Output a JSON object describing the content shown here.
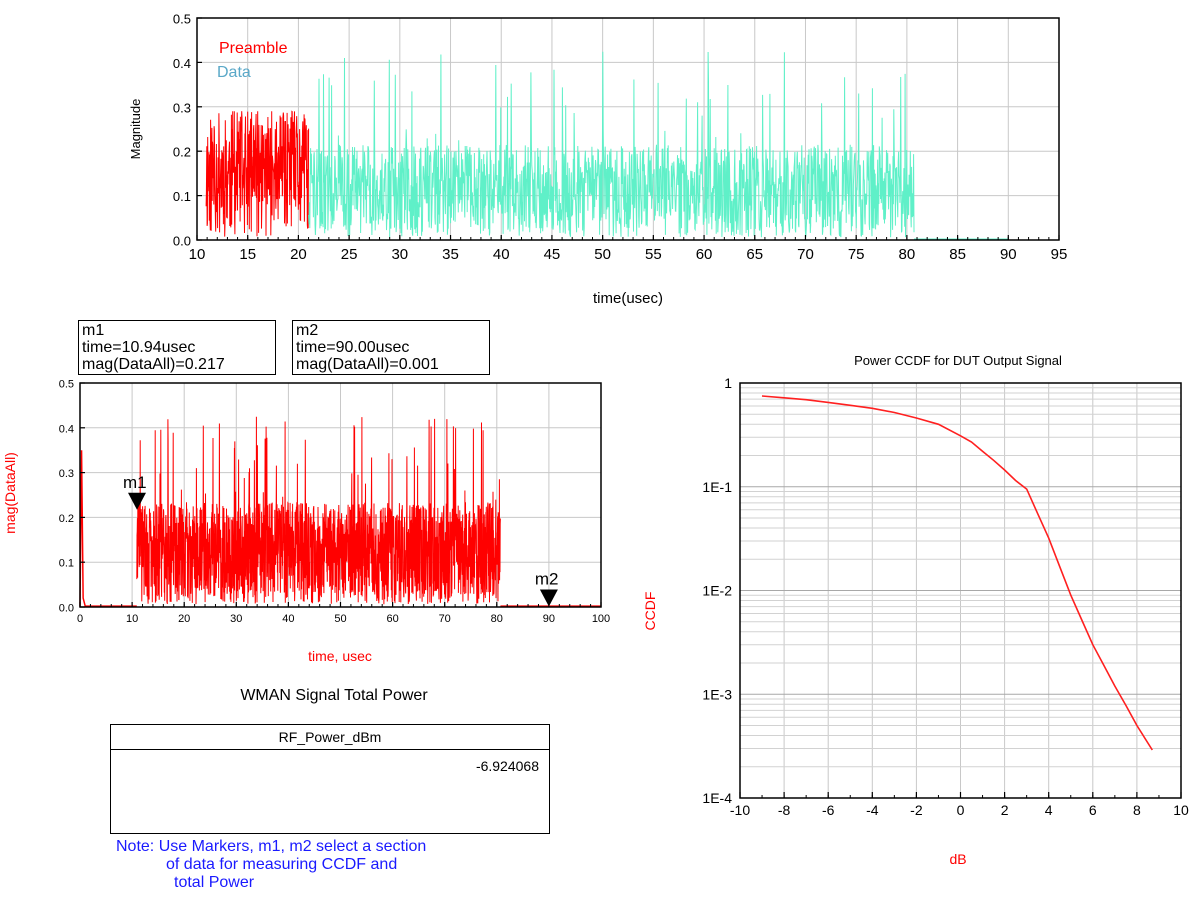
{
  "chart_data": [
    {
      "type": "line",
      "title": "",
      "xlabel": "time(usec)",
      "ylabel": "Magnitude",
      "xlim": [
        10,
        95
      ],
      "ylim": [
        0,
        0.5
      ],
      "x_ticks": [
        "10",
        "15",
        "20",
        "25",
        "30",
        "35",
        "40",
        "45",
        "50",
        "55",
        "60",
        "65",
        "70",
        "75",
        "80",
        "85",
        "90",
        "95"
      ],
      "y_ticks": [
        "0.0",
        "0.1",
        "0.2",
        "0.3",
        "0.4",
        "0.5"
      ],
      "grid": true,
      "legend": "top-left",
      "series": [
        {
          "name": "Preamble",
          "color": "#ff0000",
          "x_range": [
            10.9,
            21.0
          ],
          "baseline": 0.15,
          "peak": 0.29
        },
        {
          "name": "Data",
          "color": "#5ff0c8",
          "legend_color": "#5aa8c8",
          "x_range": [
            21.0,
            80.7
          ],
          "baseline": 0.11,
          "peak": 0.43,
          "tail_x_range": [
            80.7,
            90
          ],
          "tail_value": 0.001
        }
      ]
    },
    {
      "type": "line",
      "title": "",
      "xlabel": "time, usec",
      "ylabel": "mag(DataAll)",
      "xlim": [
        0,
        100
      ],
      "ylim": [
        0,
        0.5
      ],
      "x_ticks": [
        "0",
        "10",
        "20",
        "30",
        "40",
        "50",
        "60",
        "70",
        "80",
        "90",
        "100"
      ],
      "y_ticks": [
        "0.0",
        "0.1",
        "0.2",
        "0.3",
        "0.4",
        "0.5"
      ],
      "grid": true,
      "series": [
        {
          "name": "",
          "color": "#ff0000",
          "x_range": [
            10.9,
            80.7
          ],
          "baseline": 0.12,
          "peak": 0.43
        }
      ],
      "markers": [
        {
          "name": "m1",
          "x": 10.94,
          "y": 0.217,
          "label": "m1",
          "readout": [
            "m1",
            "time=10.94usec",
            "mag(DataAll)=0.217"
          ]
        },
        {
          "name": "m2",
          "x": 90.0,
          "y": 0.001,
          "label": "m2",
          "readout": [
            "m2",
            "time=90.00usec",
            "mag(DataAll)=0.001"
          ]
        }
      ]
    },
    {
      "type": "line",
      "title": "Power CCDF for DUT Output Signal",
      "xlabel": "dB",
      "ylabel": "CCDF",
      "xlim": [
        -10,
        10
      ],
      "ylim": [
        0.0001,
        1
      ],
      "y_scale": "log",
      "x_ticks": [
        "-10",
        "-8",
        "-6",
        "-4",
        "-2",
        "0",
        "2",
        "4",
        "6",
        "8",
        "10"
      ],
      "y_ticks": [
        "1E-4",
        "1E-3",
        "1E-2",
        "1E-1",
        "1"
      ],
      "grid": true,
      "series": [
        {
          "name": "",
          "color": "#ff2020",
          "x": [
            -9.0,
            -8.0,
            -7.0,
            -6.0,
            -5.0,
            -4.0,
            -3.0,
            -2.0,
            -1.0,
            0.0,
            0.5,
            1.0,
            1.5,
            2.0,
            2.5,
            3.0,
            3.5,
            4.0,
            4.5,
            5.0,
            5.5,
            6.0,
            6.5,
            7.0,
            7.5,
            8.0,
            8.7
          ],
          "y": [
            0.75,
            0.72,
            0.69,
            0.65,
            0.61,
            0.57,
            0.52,
            0.46,
            0.4,
            0.31,
            0.27,
            0.22,
            0.18,
            0.145,
            0.115,
            0.095,
            0.055,
            0.032,
            0.017,
            0.009,
            0.0052,
            0.003,
            0.0019,
            0.0012,
            0.00078,
            0.0005,
            0.00029
          ]
        }
      ]
    }
  ],
  "power_table": {
    "title": "WMAN Signal Total Power",
    "column": "RF_Power_dBm",
    "value": "-6.924068"
  },
  "note": {
    "line1": "Note: Use Markers, m1, m2 select a section",
    "line2": "of data for measuring CCDF and",
    "line3": "total Power"
  }
}
